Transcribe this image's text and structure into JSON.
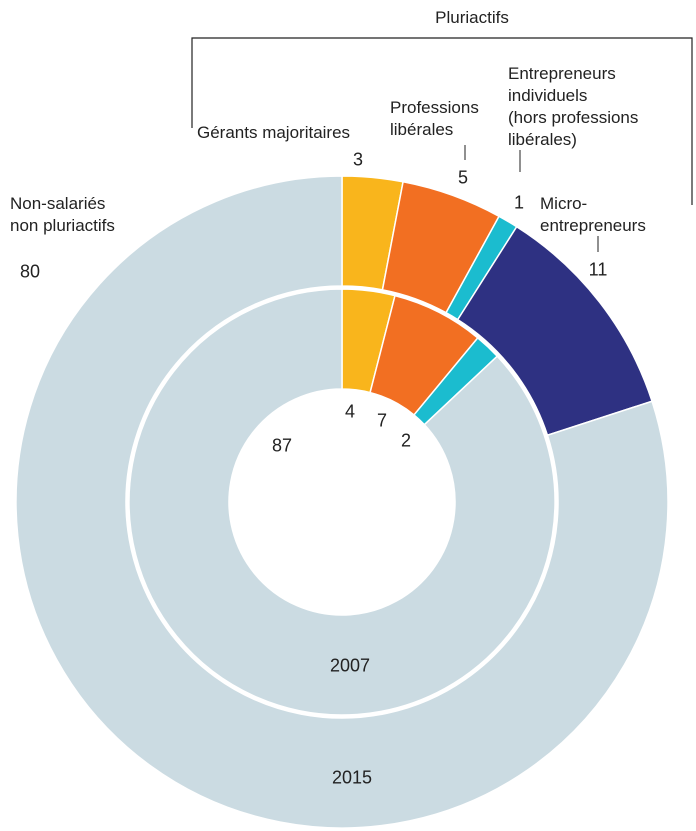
{
  "chart_data": {
    "type": "nested_donut",
    "group_label": "Pluriactifs",
    "categories": [
      "Gérants majoritaires",
      "Professions\nlibérales",
      "Entrepreneurs\nindividuels\n(hors professions\nlibérales)",
      "Micro-entrepreneurs",
      "Non-salariés\nnon pluriactifs"
    ],
    "colors": [
      "#f9b51c",
      "#f26f22",
      "#1bbccf",
      "#2e3182",
      "#cbdbe2"
    ],
    "series": [
      {
        "name": "2007",
        "values": [
          4,
          7,
          2,
          null,
          87
        ]
      },
      {
        "name": "2015",
        "values": [
          3,
          5,
          1,
          11,
          80
        ]
      }
    ]
  }
}
